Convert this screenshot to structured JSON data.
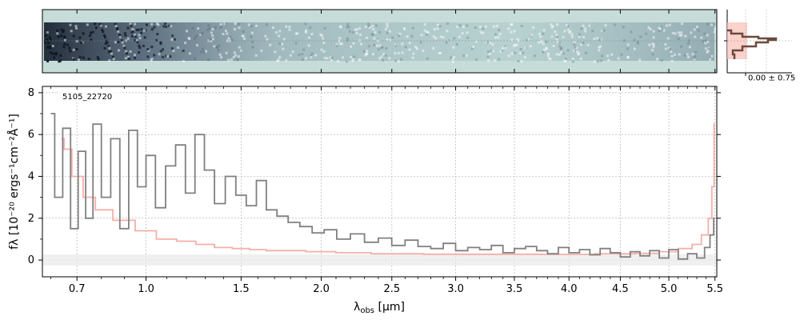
{
  "chart_data": {
    "type": "line",
    "object_id": "5105_22720",
    "xlabel": "λobs [μm]",
    "ylabel": "fλ [10⁻²⁰ ergs⁻¹cm⁻²Å⁻¹]",
    "xlabel_main": "λ",
    "xlabel_sub": "obs",
    "xlabel_unit": " [μm]",
    "x_scale": "sqrt",
    "xlim": [
      0.57,
      5.52
    ],
    "ylim": [
      -0.8,
      8.3
    ],
    "x_ticks": [
      0.7,
      1.0,
      1.5,
      2.0,
      2.5,
      3.0,
      3.5,
      4.0,
      4.5,
      5.0,
      5.5
    ],
    "x_tick_labels": [
      "0.7",
      "1.0",
      "1.5",
      "2.0",
      "2.5",
      "3.0",
      "3.5",
      "4.0",
      "4.5",
      "5.0",
      "5.5"
    ],
    "y_ticks": [
      0,
      2,
      4,
      6,
      8
    ],
    "y_tick_labels": [
      "0",
      "2",
      "4",
      "6",
      "8"
    ],
    "grid": true,
    "series": [
      {
        "role": "flux",
        "color": "#808080",
        "x": [
          0.6,
          0.63,
          0.66,
          0.69,
          0.72,
          0.75,
          0.78,
          0.82,
          0.86,
          0.9,
          0.94,
          0.98,
          1.02,
          1.07,
          1.12,
          1.17,
          1.22,
          1.27,
          1.32,
          1.38,
          1.44,
          1.5,
          1.56,
          1.62,
          1.68,
          1.75,
          1.82,
          1.9,
          1.98,
          2.06,
          2.15,
          2.25,
          2.35,
          2.45,
          2.55,
          2.65,
          2.75,
          2.85,
          2.95,
          3.05,
          3.15,
          3.25,
          3.35,
          3.45,
          3.55,
          3.65,
          3.75,
          3.85,
          3.95,
          4.05,
          4.15,
          4.25,
          4.35,
          4.45,
          4.55,
          4.65,
          4.75,
          4.85,
          4.95,
          5.05,
          5.15,
          5.25,
          5.35,
          5.42,
          5.47,
          5.5
        ],
        "y": [
          7.0,
          3.0,
          6.3,
          1.5,
          5.2,
          2.0,
          6.5,
          3.0,
          5.8,
          1.5,
          6.2,
          3.5,
          5.0,
          2.5,
          4.5,
          5.5,
          3.2,
          6.0,
          4.3,
          2.7,
          4.0,
          3.1,
          2.6,
          3.8,
          2.4,
          2.1,
          1.8,
          1.6,
          1.3,
          1.45,
          1.0,
          1.25,
          0.85,
          1.05,
          0.7,
          0.95,
          0.65,
          0.55,
          0.8,
          0.45,
          0.6,
          0.5,
          0.7,
          0.35,
          0.55,
          0.65,
          0.45,
          0.3,
          0.6,
          0.35,
          0.5,
          0.25,
          0.55,
          0.35,
          0.15,
          0.4,
          0.2,
          0.45,
          0.1,
          0.5,
          0.05,
          0.3,
          0.1,
          0.6,
          1.2,
          2.0
        ]
      },
      {
        "role": "error",
        "color": "#f4a6a0",
        "x": [
          0.64,
          0.66,
          0.7,
          0.75,
          0.8,
          0.9,
          1.0,
          1.1,
          1.2,
          1.3,
          1.4,
          1.5,
          1.6,
          1.7,
          1.8,
          2.0,
          2.2,
          2.5,
          3.0,
          3.5,
          4.0,
          4.5,
          4.8,
          5.0,
          5.2,
          5.3,
          5.4,
          5.45,
          5.48,
          5.5
        ],
        "y": [
          5.8,
          5.3,
          4.0,
          3.0,
          2.4,
          1.9,
          1.4,
          1.0,
          0.9,
          0.75,
          0.6,
          0.55,
          0.5,
          0.45,
          0.45,
          0.4,
          0.35,
          0.3,
          0.28,
          0.28,
          0.27,
          0.3,
          0.32,
          0.4,
          0.55,
          0.75,
          1.2,
          2.0,
          3.5,
          6.5
        ]
      }
    ],
    "profile_panel": {
      "annotation": "0.00 ± 0.75"
    }
  }
}
